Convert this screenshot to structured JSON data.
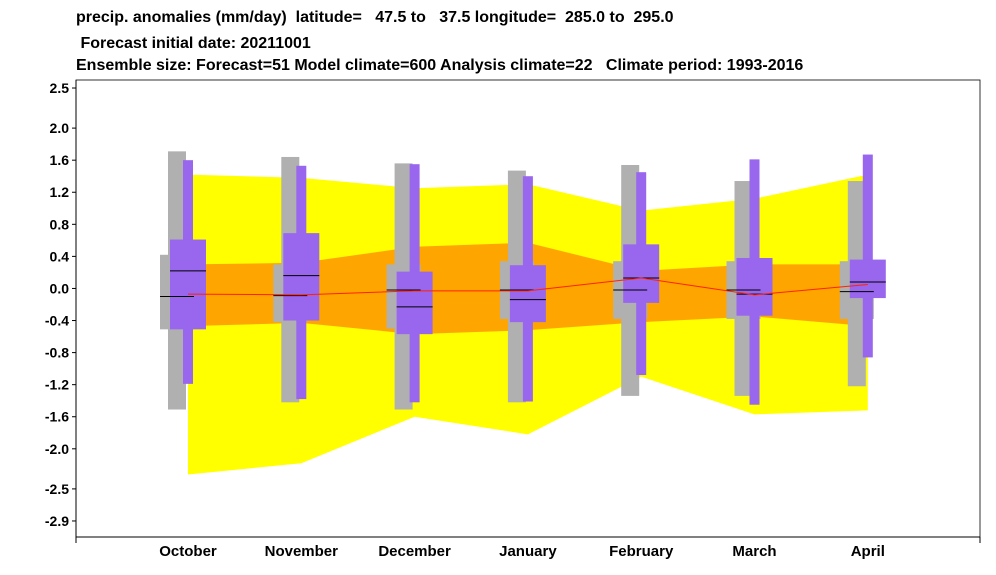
{
  "title": {
    "line1": "precip. anomalies (mm/day)  latitude=   47.5 to   37.5 longitude=  285.0 to  295.0",
    "line2": " Forecast initial date: 20211001",
    "line3": "Ensemble size: Forecast=51 Model climate=600 Analysis climate=22   Climate period: 1993-2016"
  },
  "colors": {
    "outer_band": "#ffff00",
    "inner_band": "#ffa500",
    "climate_box": "#b0b0b0",
    "forecast_box": "#9966ee",
    "median_line": "#ff2200",
    "median_tick": "#000000"
  },
  "chart_data": {
    "type": "boxplot",
    "categories": [
      "October",
      "November",
      "December",
      "January",
      "February",
      "March",
      "April"
    ],
    "y_ticks": [
      "2.5",
      "2.0",
      "1.6",
      "1.2",
      "0.8",
      "0.4",
      "0.0",
      "-0.4",
      "-0.8",
      "-1.2",
      "-1.6",
      "-2.0",
      "-2.5",
      "-2.9"
    ],
    "ylim": [
      -3.1,
      2.6
    ],
    "analysis_band_outer": {
      "upper": [
        1.42,
        1.38,
        1.25,
        1.3,
        0.97,
        1.12,
        1.42
      ],
      "lower": [
        -2.32,
        -2.18,
        -1.6,
        -1.82,
        -1.1,
        -1.57,
        -1.52
      ]
    },
    "analysis_band_inner": {
      "upper": [
        0.3,
        0.32,
        0.52,
        0.57,
        0.22,
        0.3,
        0.3
      ],
      "lower": [
        -0.47,
        -0.43,
        -0.57,
        -0.52,
        -0.42,
        -0.35,
        -0.47
      ]
    },
    "analysis_median": [
      -0.07,
      -0.08,
      -0.03,
      -0.03,
      0.13,
      -0.08,
      0.05
    ],
    "model_climate": [
      {
        "min": -1.51,
        "q1": -0.51,
        "median": -0.1,
        "q3": 0.42,
        "max": 1.71
      },
      {
        "min": -1.42,
        "q1": -0.42,
        "median": -0.09,
        "q3": 0.3,
        "max": 1.64
      },
      {
        "min": -1.51,
        "q1": -0.5,
        "median": -0.02,
        "q3": 0.3,
        "max": 1.56
      },
      {
        "min": -1.42,
        "q1": -0.38,
        "median": -0.02,
        "q3": 0.34,
        "max": 1.47
      },
      {
        "min": -1.34,
        "q1": -0.38,
        "median": -0.02,
        "q3": 0.34,
        "max": 1.54
      },
      {
        "min": -1.34,
        "q1": -0.38,
        "median": -0.02,
        "q3": 0.34,
        "max": 1.34
      },
      {
        "min": -1.22,
        "q1": -0.38,
        "median": -0.04,
        "q3": 0.34,
        "max": 1.34
      }
    ],
    "forecast": [
      {
        "min": -1.19,
        "q1": -0.51,
        "median": 0.22,
        "q3": 0.61,
        "max": 1.6
      },
      {
        "min": -1.38,
        "q1": -0.4,
        "median": 0.16,
        "q3": 0.69,
        "max": 1.53
      },
      {
        "min": -1.42,
        "q1": -0.57,
        "median": -0.23,
        "q3": 0.21,
        "max": 1.55
      },
      {
        "min": -1.41,
        "q1": -0.42,
        "median": -0.14,
        "q3": 0.29,
        "max": 1.4
      },
      {
        "min": -1.08,
        "q1": -0.18,
        "median": 0.13,
        "q3": 0.55,
        "max": 1.45
      },
      {
        "min": -1.45,
        "q1": -0.34,
        "median": -0.07,
        "q3": 0.38,
        "max": 1.61
      },
      {
        "min": -0.86,
        "q1": -0.12,
        "median": 0.08,
        "q3": 0.36,
        "max": 1.67
      }
    ]
  }
}
